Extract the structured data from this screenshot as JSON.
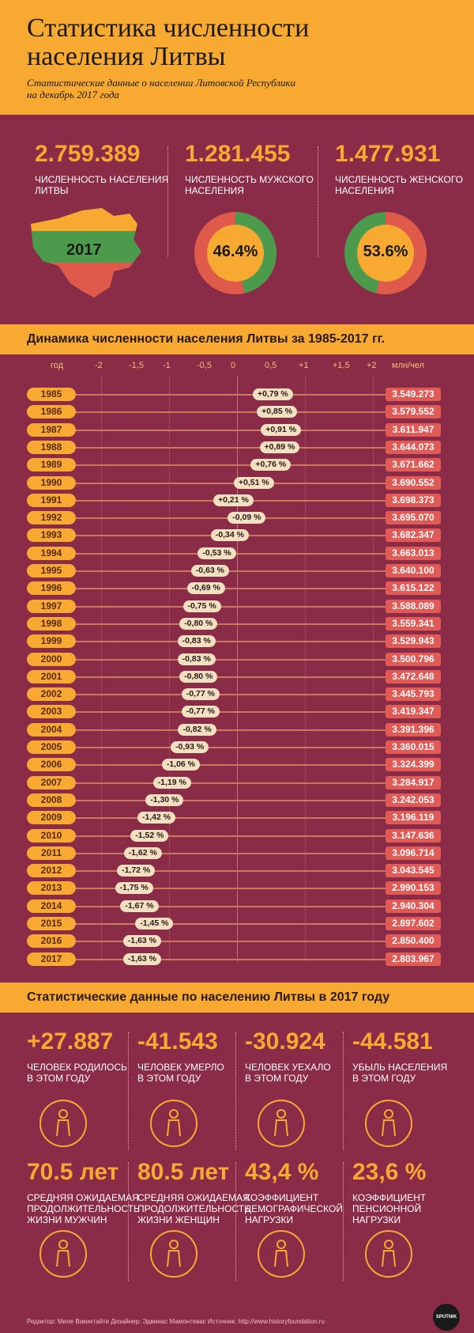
{
  "header": {
    "title_line1": "Статистика численности",
    "title_line2": "населения Литвы",
    "subtitle_line1": "Статистические данные о населении Литовской Республики",
    "subtitle_line2": "на декабрь 2017 года"
  },
  "top": {
    "total_num": "2.759.389",
    "total_label_1": "ЧИСЛЕННОСТЬ НАСЕЛЕНИЯ",
    "total_label_2": "ЛИТВЫ",
    "map_year": "2017",
    "male_num": "1.281.455",
    "male_label_1": "ЧИСЛЕННОСТЬ МУЖСКОГО",
    "male_label_2": "НАСЕЛЕНИЯ",
    "male_pct": "46.4%",
    "female_num": "1.477.931",
    "female_label_1": "ЧИСЛЕННОСТЬ ЖЕНСКОГО",
    "female_label_2": "НАСЕЛЕНИЯ",
    "female_pct": "53.6%",
    "male_share": 46.4,
    "female_share": 53.6
  },
  "dynamics": {
    "band_title": "Динамика численности населения Литвы за 1985-2017 гг.",
    "col_year": "год",
    "col_unit": "млн/чел",
    "ticks": [
      "-2",
      "-1,5",
      "-1",
      "-0,5",
      "0",
      "0,5",
      "+1",
      "+1,5",
      "+2"
    ]
  },
  "chart_data": {
    "type": "bar",
    "title": "Динамика численности населения Литвы за 1985-2017 гг.",
    "xlabel": "",
    "ylabel": "год",
    "xlim": [
      -2,
      2
    ],
    "categories": [
      "1985",
      "1986",
      "1987",
      "1988",
      "1989",
      "1990",
      "1991",
      "1992",
      "1993",
      "1994",
      "1995",
      "1996",
      "1997",
      "1998",
      "1999",
      "2000",
      "2001",
      "2002",
      "2003",
      "2004",
      "2005",
      "2006",
      "2007",
      "2008",
      "2009",
      "2010",
      "2011",
      "2012",
      "2013",
      "2014",
      "2015",
      "2016",
      "2017"
    ],
    "series": [
      {
        "name": "",
        "values": [
          0.79,
          0.85,
          0.91,
          0.89,
          0.76,
          0.51,
          0.21,
          -0.09,
          -0.34,
          -0.53,
          -0.63,
          -0.69,
          -0.75,
          -0.8,
          -0.83,
          -0.83,
          -0.8,
          -0.77,
          -0.77,
          -0.82,
          -0.93,
          -1.06,
          -1.19,
          -1.3,
          -1.42,
          -1.52,
          -1.62,
          -1.72,
          -1.75,
          -1.67,
          -1.45,
          -1.63,
          -1.63
        ],
        "labels": [
          "+0,79 %",
          "+0,85 %",
          "+0,91 %",
          "+0,89 %",
          "+0,76 %",
          "+0,51 %",
          "+0,21 %",
          "-0,09 %",
          "-0,34 %",
          "-0,53 %",
          "-0,63 %",
          "-0,69 %",
          "-0,75 %",
          "-0,80 %",
          "-0,83 %",
          "-0,83 %",
          "-0,80 %",
          "-0,77 %",
          "-0,77 %",
          "-0,82 %",
          "-0,93 %",
          "-1,06 %",
          "-1,19 %",
          "-1,30 %",
          "-1,42 %",
          "-1,52 %",
          "-1,62 %",
          "-1,72 %",
          "-1,75 %",
          "-1,67 %",
          "-1,45 %",
          "-1,63 %",
          "-1,63 %"
        ]
      }
    ],
    "population": [
      "3.549.273",
      "3.579.552",
      "3.611.947",
      "3.644.073",
      "3.671.662",
      "3.690.552",
      "3.698.373",
      "3.695.070",
      "3.682.347",
      "3.663.013",
      "3.640.100",
      "3.615.122",
      "3.588.089",
      "3.559.341",
      "3.529.943",
      "3.500.796",
      "3.472.648",
      "3.445.793",
      "3.419.347",
      "3.391.396",
      "3.360.015",
      "3.324.399",
      "3.284.917",
      "3.242.053",
      "3.196.119",
      "3.147.636",
      "3.096.714",
      "3.043.545",
      "2.990.153",
      "2.940.304",
      "2.897.602",
      "2.850.400",
      "2.803.967"
    ],
    "grid": true
  },
  "stats": {
    "band_title": "Статистические данные по населению Литвы в 2017 году",
    "items": [
      {
        "num": "+27.887",
        "l1": "ЧЕЛОВЕК РОДИЛОСЬ",
        "l2": "В ЭТОМ ГОДУ",
        "l3": "",
        "icon": "mother-baby-icon"
      },
      {
        "num": "-41.543",
        "l1": "ЧЕЛОВЕК УМЕРЛО",
        "l2": "В ЭТОМ ГОДУ",
        "l3": "",
        "icon": "elderly-person-icon"
      },
      {
        "num": "-30.924",
        "l1": "ЧЕЛОВЕК УЕХАЛО",
        "l2": "В ЭТОМ ГОДУ",
        "l3": "",
        "icon": "traveler-suitcase-icon"
      },
      {
        "num": "-44.581",
        "l1": "УБЫЛЬ НАСЕЛЕНИЯ",
        "l2": "В ЭТОМ ГОДУ",
        "l3": "",
        "icon": "person-arrow-icon"
      },
      {
        "num": "70.5 лет",
        "l1": "СРЕДНЯЯ ОЖИДАЕМАЯ",
        "l2": "ПРОДОЛЖИТЕЛЬНОСТЬ",
        "l3": "ЖИЗНИ МУЖЧИН",
        "icon": "man-icon"
      },
      {
        "num": "80.5 лет",
        "l1": "СРЕДНЯЯ ОЖИДАЕМАЯ",
        "l2": "ПРОДОЛЖИТЕЛЬНОСТЬ",
        "l3": "ЖИЗНИ ЖЕНЩИН",
        "icon": "woman-icon"
      },
      {
        "num": "43,4 %",
        "l1": "КОЭФФИЦИЕНТ",
        "l2": "ДЕМОГРАФИЧЕСКОЙ",
        "l3": "НАГРУЗКИ",
        "icon": "group-people-icon"
      },
      {
        "num": "23,6 %",
        "l1": "КОЭФФИЦИЕНТ",
        "l2": "ПЕНСИОННОЙ",
        "l3": "НАГРУЗКИ",
        "icon": "euro-wallet-icon"
      }
    ]
  },
  "footer": {
    "credits": "Редактор: Миле Викинтайте   Дизайнер: Эдвинас Мамонтевас   Источник: http://www.historyfoundation.ru",
    "logo_text": "SPUTNIK"
  },
  "colors": {
    "background": "#8a2b48",
    "accent": "#f8a932",
    "value_pill": "#e05a56",
    "male_green": "#4c9a4c",
    "female_red": "#e05a4c"
  }
}
